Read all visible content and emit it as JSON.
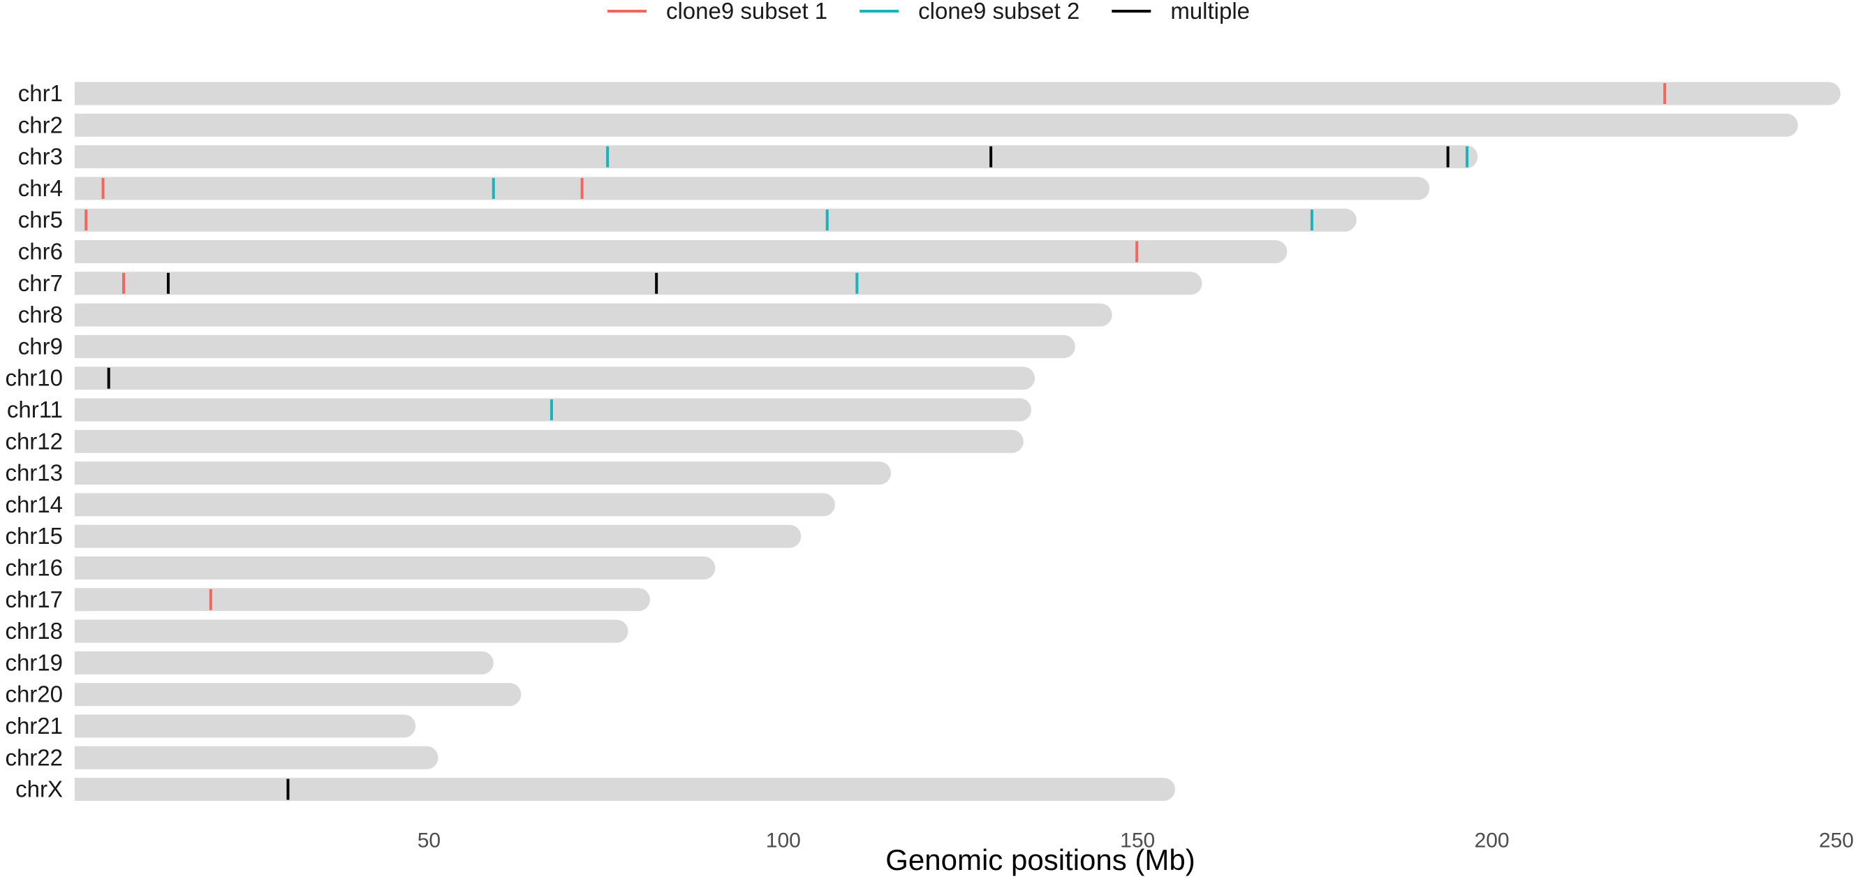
{
  "chart_data": {
    "type": "karyogram",
    "xlabel": "Genomic positions (Mb)",
    "xlim": [
      0,
      250
    ],
    "xticks": [
      50,
      100,
      150,
      200,
      250
    ],
    "legend_position": "top",
    "bar_color": "#d9d9d9",
    "legend": [
      {
        "name": "clone9 subset 1",
        "color": "#f0675e"
      },
      {
        "name": "clone9 subset 2",
        "color": "#1ab3bb"
      },
      {
        "name": "multiple",
        "color": "#000000"
      }
    ],
    "chromosomes": [
      {
        "name": "chr1",
        "length": 249.2
      },
      {
        "name": "chr2",
        "length": 243.2
      },
      {
        "name": "chr3",
        "length": 198.0
      },
      {
        "name": "chr4",
        "length": 191.2
      },
      {
        "name": "chr5",
        "length": 180.9
      },
      {
        "name": "chr6",
        "length": 171.1
      },
      {
        "name": "chr7",
        "length": 159.1
      },
      {
        "name": "chr8",
        "length": 146.4
      },
      {
        "name": "chr9",
        "length": 141.2
      },
      {
        "name": "chr10",
        "length": 135.5
      },
      {
        "name": "chr11",
        "length": 135.0
      },
      {
        "name": "chr12",
        "length": 133.9
      },
      {
        "name": "chr13",
        "length": 115.2
      },
      {
        "name": "chr14",
        "length": 107.3
      },
      {
        "name": "chr15",
        "length": 102.5
      },
      {
        "name": "chr16",
        "length": 90.4
      },
      {
        "name": "chr17",
        "length": 81.2
      },
      {
        "name": "chr18",
        "length": 78.1
      },
      {
        "name": "chr19",
        "length": 59.1
      },
      {
        "name": "chr20",
        "length": 63.0
      },
      {
        "name": "chr21",
        "length": 48.1
      },
      {
        "name": "chr22",
        "length": 51.3
      },
      {
        "name": "chrX",
        "length": 155.3
      }
    ],
    "marks": [
      {
        "chr": "chr1",
        "pos": 224.4,
        "group": "clone9 subset 1"
      },
      {
        "chr": "chr3",
        "pos": 75.2,
        "group": "clone9 subset 2"
      },
      {
        "chr": "chr3",
        "pos": 129.3,
        "group": "multiple"
      },
      {
        "chr": "chr3",
        "pos": 193.8,
        "group": "multiple"
      },
      {
        "chr": "chr3",
        "pos": 196.5,
        "group": "clone9 subset 2"
      },
      {
        "chr": "chr4",
        "pos": 4.0,
        "group": "clone9 subset 1"
      },
      {
        "chr": "chr4",
        "pos": 59.1,
        "group": "clone9 subset 2"
      },
      {
        "chr": "chr4",
        "pos": 71.6,
        "group": "clone9 subset 1"
      },
      {
        "chr": "chr5",
        "pos": 1.6,
        "group": "clone9 subset 1"
      },
      {
        "chr": "chr5",
        "pos": 106.2,
        "group": "clone9 subset 2"
      },
      {
        "chr": "chr5",
        "pos": 174.6,
        "group": "clone9 subset 2"
      },
      {
        "chr": "chr6",
        "pos": 149.9,
        "group": "clone9 subset 1"
      },
      {
        "chr": "chr7",
        "pos": 6.9,
        "group": "clone9 subset 1"
      },
      {
        "chr": "chr7",
        "pos": 13.2,
        "group": "multiple"
      },
      {
        "chr": "chr7",
        "pos": 82.1,
        "group": "multiple"
      },
      {
        "chr": "chr7",
        "pos": 110.4,
        "group": "clone9 subset 2"
      },
      {
        "chr": "chr10",
        "pos": 4.8,
        "group": "multiple"
      },
      {
        "chr": "chr11",
        "pos": 67.3,
        "group": "clone9 subset 2"
      },
      {
        "chr": "chr17",
        "pos": 19.2,
        "group": "clone9 subset 1"
      },
      {
        "chr": "chrX",
        "pos": 30.1,
        "group": "multiple"
      }
    ]
  }
}
